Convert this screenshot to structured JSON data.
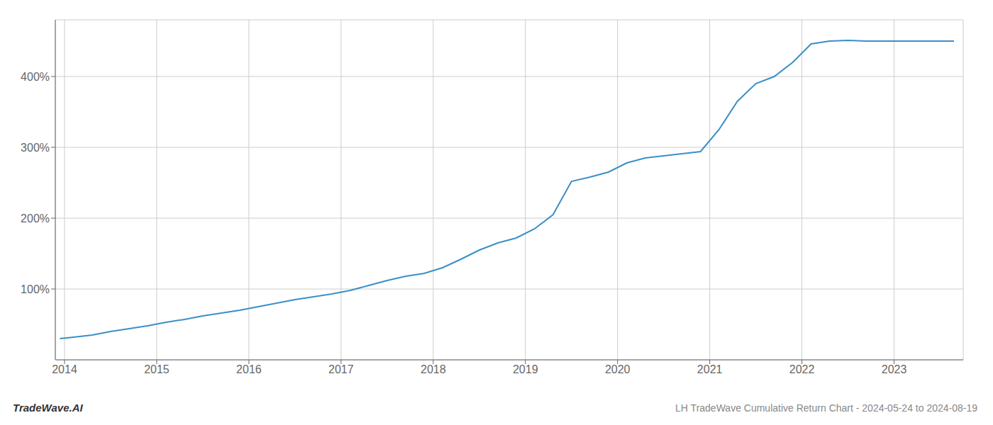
{
  "chart_data": {
    "type": "line",
    "title": "LH TradeWave Cumulative Return Chart - 2024-05-24 to 2024-08-19",
    "annotations": [
      "TradeWave.AI"
    ],
    "x": [
      2013.95,
      2014.1,
      2014.3,
      2014.5,
      2014.7,
      2014.9,
      2015.1,
      2015.3,
      2015.5,
      2015.7,
      2015.9,
      2016.1,
      2016.3,
      2016.5,
      2016.7,
      2016.9,
      2017.1,
      2017.3,
      2017.5,
      2017.7,
      2017.9,
      2018.1,
      2018.3,
      2018.5,
      2018.7,
      2018.9,
      2019.1,
      2019.3,
      2019.5,
      2019.7,
      2019.9,
      2020.1,
      2020.3,
      2020.5,
      2020.7,
      2020.9,
      2021.1,
      2021.3,
      2021.5,
      2021.7,
      2021.9,
      2022.1,
      2022.3,
      2022.5,
      2022.7,
      2022.9,
      2023.1,
      2023.3,
      2023.5,
      2023.65
    ],
    "values": [
      30,
      32,
      35,
      40,
      44,
      48,
      53,
      57,
      62,
      66,
      70,
      75,
      80,
      85,
      89,
      93,
      98,
      105,
      112,
      118,
      122,
      130,
      142,
      155,
      165,
      172,
      185,
      205,
      252,
      258,
      265,
      278,
      285,
      288,
      291,
      294,
      325,
      365,
      390,
      400,
      420,
      446,
      450,
      451,
      450,
      450,
      450,
      450,
      450,
      450
    ],
    "color": "#3a8fc7",
    "xlim": [
      2013.9,
      2023.75
    ],
    "xticks": [
      2014,
      2015,
      2016,
      2017,
      2018,
      2019,
      2020,
      2021,
      2022,
      2023
    ],
    "ylim": [
      0,
      480
    ],
    "yticks": [
      {
        "value": 100,
        "label": "100%"
      },
      {
        "value": 200,
        "label": "200%"
      },
      {
        "value": 300,
        "label": "300%"
      },
      {
        "value": 400,
        "label": "400%"
      }
    ],
    "grid": true
  }
}
